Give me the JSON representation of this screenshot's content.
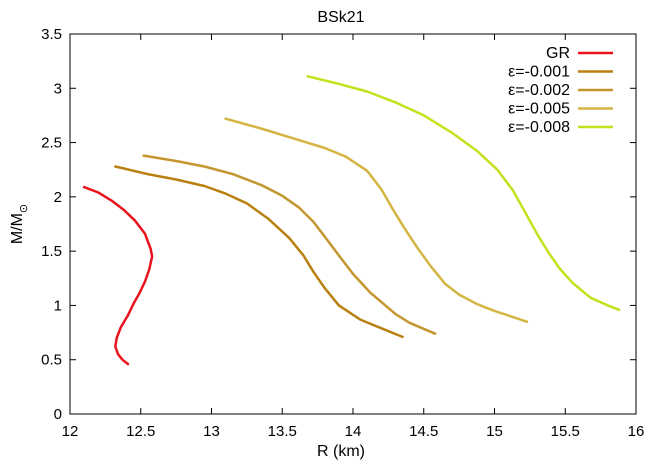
{
  "chart_data": {
    "type": "line",
    "title": "BSk21",
    "xlabel": "R (km)",
    "ylabel_main": "M/M",
    "ylabel_sub": "⊙",
    "xlim": [
      12,
      16
    ],
    "ylim": [
      0,
      3.5
    ],
    "x_ticks": [
      "12",
      "12.5",
      "13",
      "13.5",
      "14",
      "14.5",
      "15",
      "15.5",
      "16"
    ],
    "y_ticks": [
      "0",
      "0.5",
      "1",
      "1.5",
      "2",
      "2.5",
      "3",
      "3.5"
    ],
    "grid": false,
    "legend_position": "top-right",
    "series": [
      {
        "name": "GR",
        "color": "#e8141e",
        "points": [
          [
            12.1,
            2.09
          ],
          [
            12.2,
            2.04
          ],
          [
            12.3,
            1.96
          ],
          [
            12.38,
            1.88
          ],
          [
            12.46,
            1.78
          ],
          [
            12.53,
            1.66
          ],
          [
            12.57,
            1.52
          ],
          [
            12.58,
            1.45
          ],
          [
            12.56,
            1.33
          ],
          [
            12.53,
            1.22
          ],
          [
            12.49,
            1.11
          ],
          [
            12.45,
            1.02
          ],
          [
            12.41,
            0.91
          ],
          [
            12.36,
            0.8
          ],
          [
            12.33,
            0.7
          ],
          [
            12.32,
            0.62
          ],
          [
            12.34,
            0.55
          ],
          [
            12.37,
            0.5
          ],
          [
            12.41,
            0.46
          ]
        ]
      },
      {
        "name": "ε=-0.001",
        "color": "#b8800e",
        "points": [
          [
            12.32,
            2.28
          ],
          [
            12.55,
            2.21
          ],
          [
            12.75,
            2.16
          ],
          [
            12.95,
            2.1
          ],
          [
            13.1,
            2.03
          ],
          [
            13.25,
            1.94
          ],
          [
            13.4,
            1.8
          ],
          [
            13.55,
            1.62
          ],
          [
            13.65,
            1.46
          ],
          [
            13.72,
            1.31
          ],
          [
            13.8,
            1.16
          ],
          [
            13.9,
            1.0
          ],
          [
            14.05,
            0.87
          ],
          [
            14.18,
            0.8
          ],
          [
            14.35,
            0.71
          ]
        ]
      },
      {
        "name": "ε=-0.002",
        "color": "#c49630",
        "points": [
          [
            12.52,
            2.38
          ],
          [
            12.75,
            2.33
          ],
          [
            12.95,
            2.28
          ],
          [
            13.15,
            2.21
          ],
          [
            13.35,
            2.11
          ],
          [
            13.5,
            2.01
          ],
          [
            13.62,
            1.9
          ],
          [
            13.72,
            1.77
          ],
          [
            13.82,
            1.6
          ],
          [
            13.9,
            1.46
          ],
          [
            14.0,
            1.29
          ],
          [
            14.12,
            1.12
          ],
          [
            14.22,
            1.01
          ],
          [
            14.3,
            0.92
          ],
          [
            14.4,
            0.84
          ],
          [
            14.58,
            0.74
          ]
        ]
      },
      {
        "name": "ε=-0.005",
        "color": "#d4b442",
        "points": [
          [
            13.1,
            2.72
          ],
          [
            13.35,
            2.63
          ],
          [
            13.6,
            2.53
          ],
          [
            13.8,
            2.45
          ],
          [
            13.95,
            2.37
          ],
          [
            14.1,
            2.24
          ],
          [
            14.2,
            2.07
          ],
          [
            14.28,
            1.89
          ],
          [
            14.36,
            1.72
          ],
          [
            14.45,
            1.54
          ],
          [
            14.55,
            1.36
          ],
          [
            14.65,
            1.2
          ],
          [
            14.75,
            1.1
          ],
          [
            14.88,
            1.01
          ],
          [
            15.0,
            0.95
          ],
          [
            15.23,
            0.85
          ]
        ]
      },
      {
        "name": "ε=-0.008",
        "color": "#c6e01c",
        "points": [
          [
            13.68,
            3.11
          ],
          [
            13.9,
            3.04
          ],
          [
            14.1,
            2.97
          ],
          [
            14.3,
            2.87
          ],
          [
            14.5,
            2.75
          ],
          [
            14.7,
            2.59
          ],
          [
            14.88,
            2.42
          ],
          [
            15.02,
            2.25
          ],
          [
            15.13,
            2.06
          ],
          [
            15.22,
            1.85
          ],
          [
            15.3,
            1.66
          ],
          [
            15.38,
            1.49
          ],
          [
            15.46,
            1.34
          ],
          [
            15.55,
            1.21
          ],
          [
            15.68,
            1.07
          ],
          [
            15.8,
            1.0
          ],
          [
            15.88,
            0.96
          ]
        ]
      }
    ]
  }
}
